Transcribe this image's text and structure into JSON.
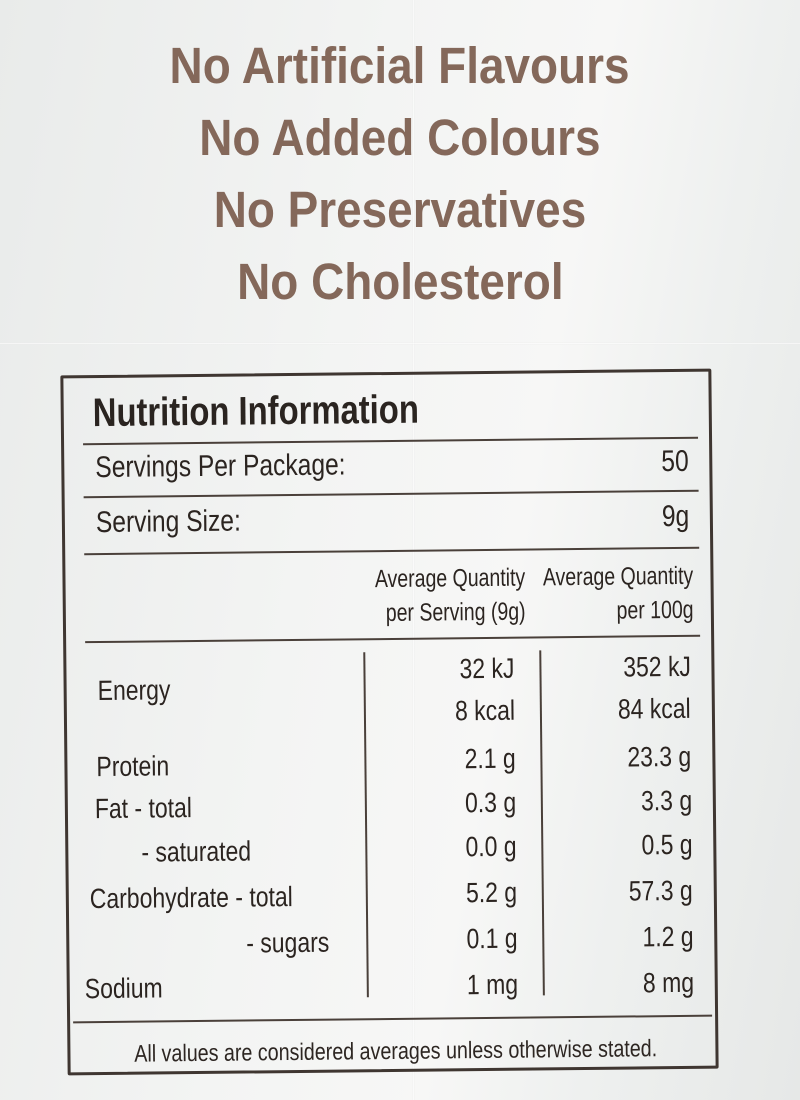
{
  "claims": [
    "No Artificial Flavours",
    "No Added Colours",
    "No Preservatives",
    "No Cholesterol"
  ],
  "panel": {
    "title": "Nutrition Information",
    "servings_per_package_label": "Servings Per Package:",
    "servings_per_package_value": "50",
    "serving_size_label": "Serving Size:",
    "serving_size_value": "9g",
    "col_serving_line1": "Average Quantity",
    "col_serving_line2": "per Serving (9g)",
    "col_100g_line1": "Average Quantity",
    "col_100g_line2": "per 100g",
    "rows": [
      {
        "label": "Energy",
        "per_serving": "32 kJ",
        "per_100g": "352 kJ"
      },
      {
        "label": "",
        "per_serving": "8 kcal",
        "per_100g": "84 kcal"
      },
      {
        "label": "Protein",
        "per_serving": "2.1 g",
        "per_100g": "23.3 g"
      },
      {
        "label": "Fat  - total",
        "per_serving": "0.3 g",
        "per_100g": "3.3 g"
      },
      {
        "label": "- saturated",
        "per_serving": "0.0 g",
        "per_100g": "0.5 g"
      },
      {
        "label": "Carbohydrate - total",
        "per_serving": "5.2 g",
        "per_100g": "57.3 g"
      },
      {
        "label": "- sugars",
        "per_serving": "0.1 g",
        "per_100g": "1.2 g"
      },
      {
        "label": "Sodium",
        "per_serving": "1 mg",
        "per_100g": "8 mg"
      }
    ],
    "footnote": "All values are considered averages unless otherwise stated."
  },
  "colors": {
    "claim_text": "#84685a",
    "panel_text": "#2b2420",
    "background": "#f3f4f3"
  }
}
